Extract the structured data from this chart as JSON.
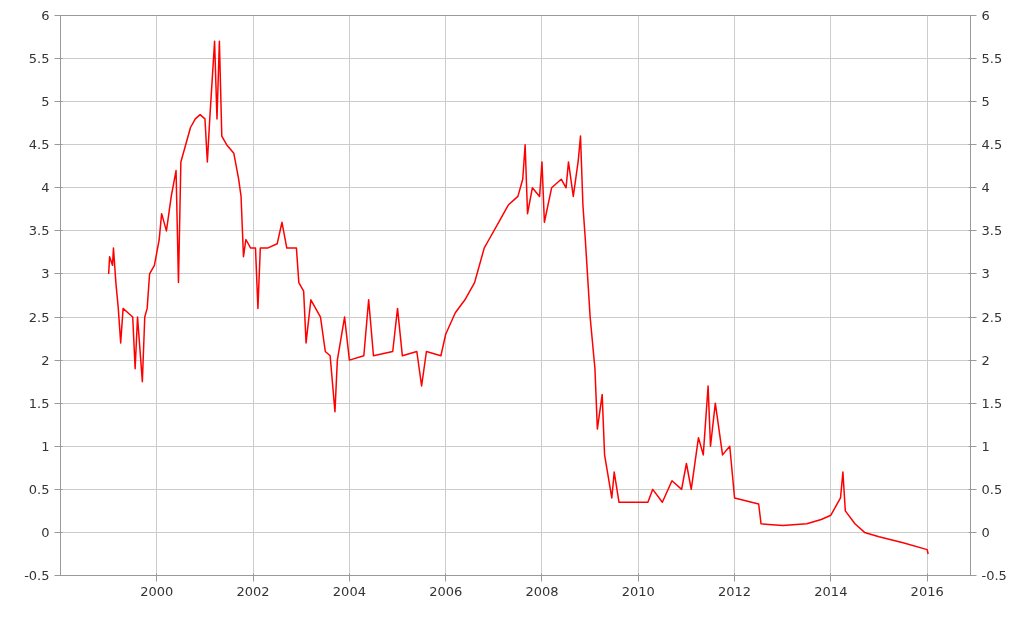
{
  "chart_data": {
    "type": "line",
    "x": [
      1999.0,
      1999.02,
      1999.08,
      1999.1,
      1999.15,
      1999.2,
      1999.25,
      1999.3,
      1999.4,
      1999.5,
      1999.55,
      1999.6,
      1999.7,
      1999.75,
      1999.8,
      1999.85,
      1999.95,
      2000.05,
      2000.1,
      2000.2,
      2000.3,
      2000.4,
      2000.45,
      2000.5,
      2000.6,
      2000.7,
      2000.8,
      2000.9,
      2001.0,
      2001.05,
      2001.1,
      2001.2,
      2001.25,
      2001.3,
      2001.35,
      2001.45,
      2001.6,
      2001.7,
      2001.75,
      2001.8,
      2001.85,
      2001.95,
      2002.05,
      2002.1,
      2002.15,
      2002.3,
      2002.5,
      2002.6,
      2002.7,
      2002.9,
      2002.95,
      2003.05,
      2003.1,
      2003.2,
      2003.4,
      2003.5,
      2003.6,
      2003.7,
      2003.75,
      2003.9,
      2004.0,
      2004.3,
      2004.4,
      2004.5,
      2004.9,
      2005.0,
      2005.1,
      2005.4,
      2005.5,
      2005.6,
      2005.9,
      2006.0,
      2006.2,
      2006.4,
      2006.6,
      2006.8,
      2006.9,
      2007.1,
      2007.3,
      2007.5,
      2007.6,
      2007.65,
      2007.7,
      2007.8,
      2007.95,
      2008.0,
      2008.05,
      2008.2,
      2008.4,
      2008.5,
      2008.55,
      2008.65,
      2008.75,
      2008.8,
      2008.85,
      2008.9,
      2009.0,
      2009.1,
      2009.15,
      2009.25,
      2009.3,
      2009.45,
      2009.5,
      2009.6,
      2010.0,
      2010.2,
      2010.3,
      2010.5,
      2010.7,
      2010.9,
      2011.0,
      2011.1,
      2011.25,
      2011.35,
      2011.45,
      2011.5,
      2011.6,
      2011.75,
      2011.9,
      2012.0,
      2012.5,
      2012.55,
      2013.0,
      2013.5,
      2013.8,
      2014.0,
      2014.2,
      2014.25,
      2014.3,
      2014.5,
      2014.7,
      2015.0,
      2015.5,
      2016.0,
      2016.02
    ],
    "series": [
      {
        "color": "#ff0000",
        "values": [
          3.0,
          3.2,
          3.1,
          3.3,
          2.9,
          2.6,
          2.2,
          2.6,
          2.55,
          2.5,
          1.9,
          2.5,
          1.75,
          2.5,
          2.6,
          3.0,
          3.1,
          3.4,
          3.7,
          3.5,
          3.9,
          4.2,
          2.9,
          4.3,
          4.5,
          4.7,
          4.8,
          4.85,
          4.8,
          4.3,
          4.8,
          5.7,
          4.8,
          5.7,
          4.6,
          4.5,
          4.4,
          4.1,
          3.9,
          3.2,
          3.4,
          3.3,
          3.3,
          2.6,
          3.3,
          3.3,
          3.35,
          3.6,
          3.3,
          3.3,
          2.9,
          2.8,
          2.2,
          2.7,
          2.5,
          2.1,
          2.05,
          1.4,
          2.0,
          2.5,
          2.0,
          2.05,
          2.7,
          2.05,
          2.1,
          2.6,
          2.05,
          2.1,
          1.7,
          2.1,
          2.05,
          2.3,
          2.55,
          2.7,
          2.9,
          3.3,
          3.4,
          3.6,
          3.8,
          3.9,
          4.1,
          4.5,
          3.7,
          4.0,
          3.9,
          4.3,
          3.6,
          4.0,
          4.1,
          4.0,
          4.3,
          3.9,
          4.3,
          4.6,
          3.8,
          3.4,
          2.5,
          1.9,
          1.2,
          1.6,
          0.9,
          0.4,
          0.7,
          0.35,
          0.35,
          0.35,
          0.5,
          0.35,
          0.6,
          0.5,
          0.8,
          0.5,
          1.1,
          0.9,
          1.7,
          1.0,
          1.5,
          0.9,
          1.0,
          0.4,
          0.33,
          0.1,
          0.08,
          0.1,
          0.15,
          0.2,
          0.4,
          0.7,
          0.25,
          0.1,
          0.0,
          -0.05,
          -0.12,
          -0.2,
          -0.25
        ]
      }
    ],
    "xlim": [
      1998,
      2016.9
    ],
    "xticks": [
      2000,
      2002,
      2004,
      2006,
      2008,
      2010,
      2012,
      2014,
      2016
    ],
    "ylim": [
      -0.5,
      6
    ],
    "yticks": [
      -0.5,
      0,
      0.5,
      1,
      1.5,
      2,
      2.5,
      3,
      3.5,
      4,
      4.5,
      5,
      5.5,
      6
    ],
    "y2lim": [
      -0.5,
      6
    ],
    "y2ticks": [
      -0.5,
      0,
      0.5,
      1,
      1.5,
      2,
      2.5,
      3,
      3.5,
      4,
      4.5,
      5,
      5.5,
      6
    ],
    "grid": true,
    "marker": "none",
    "line_style": "solid"
  }
}
